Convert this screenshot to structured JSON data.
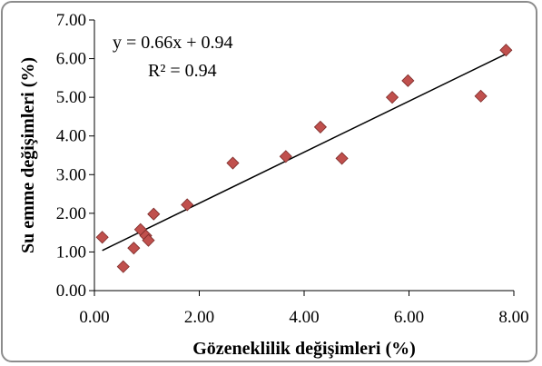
{
  "chart_data": {
    "type": "scatter",
    "title": "",
    "xlabel": "Gözeneklilik değişimleri (%)",
    "ylabel": "Su emme değişimleri (%)",
    "xlim": [
      0,
      8
    ],
    "ylim": [
      0,
      7
    ],
    "x_ticks": [
      "0.00",
      "2.00",
      "4.00",
      "6.00",
      "8.00"
    ],
    "y_ticks": [
      "0.00",
      "1.00",
      "2.00",
      "3.00",
      "4.00",
      "5.00",
      "6.00",
      "7.00"
    ],
    "grid": false,
    "legend": "none",
    "series": [
      {
        "marker": "diamond",
        "color": "#c0504d",
        "points": [
          {
            "x": 0.15,
            "y": 1.38
          },
          {
            "x": 0.55,
            "y": 0.62
          },
          {
            "x": 0.75,
            "y": 1.1
          },
          {
            "x": 0.88,
            "y": 1.58
          },
          {
            "x": 0.98,
            "y": 1.42
          },
          {
            "x": 1.03,
            "y": 1.3
          },
          {
            "x": 1.13,
            "y": 1.98
          },
          {
            "x": 1.77,
            "y": 2.22
          },
          {
            "x": 2.64,
            "y": 3.3
          },
          {
            "x": 3.65,
            "y": 3.47
          },
          {
            "x": 4.31,
            "y": 4.23
          },
          {
            "x": 4.72,
            "y": 3.42
          },
          {
            "x": 5.68,
            "y": 5.0
          },
          {
            "x": 5.98,
            "y": 5.43
          },
          {
            "x": 7.37,
            "y": 5.03
          },
          {
            "x": 7.85,
            "y": 6.22
          }
        ]
      }
    ],
    "trendline": {
      "slope": 0.66,
      "intercept": 0.94,
      "x_range": [
        0.15,
        7.85
      ],
      "color": "#000000"
    },
    "annotations": {
      "equation": "y = 0.66x + 0.94",
      "r_squared": "R² = 0.94"
    }
  }
}
